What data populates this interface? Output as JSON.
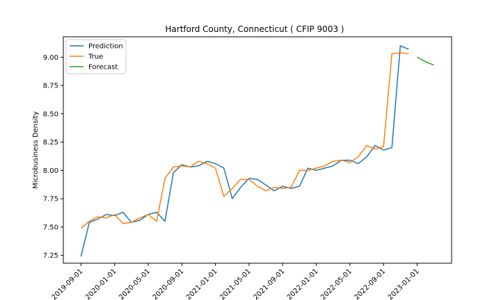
{
  "chart_data": {
    "type": "line",
    "title": "Hartford County, Connecticut ( CFIP 9003 )",
    "xlabel": "",
    "ylabel": "Microbusiness Density",
    "ylim": [
      7.18,
      9.18
    ],
    "y_ticks": [
      7.25,
      7.5,
      7.75,
      8.0,
      8.25,
      8.5,
      8.75,
      9.0
    ],
    "y_tick_labels": [
      "7.25",
      "7.50",
      "7.75",
      "8.00",
      "8.25",
      "8.50",
      "8.75",
      "9.00"
    ],
    "x_ticks": [
      "2019-09-01",
      "2020-01-01",
      "2020-05-01",
      "2020-09-01",
      "2021-01-01",
      "2021-05-01",
      "2021-09-01",
      "2022-01-01",
      "2022-05-01",
      "2022-09-01",
      "2023-01-01"
    ],
    "grid": false,
    "legend_position": "upper left",
    "series": [
      {
        "name": "Prediction",
        "color": "#1f77b4",
        "points": [
          [
            "2019-09-01",
            7.24
          ],
          [
            "2019-10-01",
            7.54
          ],
          [
            "2019-11-01",
            7.57
          ],
          [
            "2019-12-01",
            7.61
          ],
          [
            "2020-01-01",
            7.6
          ],
          [
            "2020-02-01",
            7.63
          ],
          [
            "2020-03-01",
            7.54
          ],
          [
            "2020-04-01",
            7.56
          ],
          [
            "2020-05-01",
            7.61
          ],
          [
            "2020-06-01",
            7.63
          ],
          [
            "2020-07-01",
            7.55
          ],
          [
            "2020-08-01",
            7.98
          ],
          [
            "2020-09-01",
            8.05
          ],
          [
            "2020-10-01",
            8.03
          ],
          [
            "2020-11-01",
            8.04
          ],
          [
            "2020-12-01",
            8.08
          ],
          [
            "2021-01-01",
            8.06
          ],
          [
            "2021-02-01",
            8.02
          ],
          [
            "2021-03-01",
            7.75
          ],
          [
            "2021-04-01",
            7.85
          ],
          [
            "2021-05-01",
            7.93
          ],
          [
            "2021-06-01",
            7.92
          ],
          [
            "2021-07-01",
            7.87
          ],
          [
            "2021-08-01",
            7.82
          ],
          [
            "2021-09-01",
            7.86
          ],
          [
            "2021-10-01",
            7.84
          ],
          [
            "2021-11-01",
            7.86
          ],
          [
            "2021-12-01",
            8.02
          ],
          [
            "2022-01-01",
            8.0
          ],
          [
            "2022-02-01",
            8.02
          ],
          [
            "2022-03-01",
            8.04
          ],
          [
            "2022-04-01",
            8.09
          ],
          [
            "2022-05-01",
            8.09
          ],
          [
            "2022-06-01",
            8.06
          ],
          [
            "2022-07-01",
            8.12
          ],
          [
            "2022-08-01",
            8.22
          ],
          [
            "2022-09-01",
            8.18
          ],
          [
            "2022-10-01",
            8.2
          ],
          [
            "2022-11-01",
            9.1
          ],
          [
            "2022-12-01",
            9.07
          ]
        ]
      },
      {
        "name": "True",
        "color": "#ff7f0e",
        "points": [
          [
            "2019-09-01",
            7.49
          ],
          [
            "2019-10-01",
            7.55
          ],
          [
            "2019-11-01",
            7.59
          ],
          [
            "2019-12-01",
            7.58
          ],
          [
            "2020-01-01",
            7.61
          ],
          [
            "2020-02-01",
            7.53
          ],
          [
            "2020-03-01",
            7.54
          ],
          [
            "2020-04-01",
            7.58
          ],
          [
            "2020-05-01",
            7.61
          ],
          [
            "2020-06-01",
            7.55
          ],
          [
            "2020-07-01",
            7.93
          ],
          [
            "2020-08-01",
            8.03
          ],
          [
            "2020-09-01",
            8.04
          ],
          [
            "2020-10-01",
            8.03
          ],
          [
            "2020-11-01",
            8.08
          ],
          [
            "2020-12-01",
            8.06
          ],
          [
            "2021-01-01",
            8.02
          ],
          [
            "2021-02-01",
            7.77
          ],
          [
            "2021-03-01",
            7.84
          ],
          [
            "2021-04-01",
            7.92
          ],
          [
            "2021-05-01",
            7.92
          ],
          [
            "2021-06-01",
            7.86
          ],
          [
            "2021-07-01",
            7.82
          ],
          [
            "2021-08-01",
            7.85
          ],
          [
            "2021-09-01",
            7.84
          ],
          [
            "2021-10-01",
            7.85
          ],
          [
            "2021-11-01",
            8.0
          ],
          [
            "2021-12-01",
            8.0
          ],
          [
            "2022-01-01",
            8.02
          ],
          [
            "2022-02-01",
            8.04
          ],
          [
            "2022-03-01",
            8.08
          ],
          [
            "2022-04-01",
            8.09
          ],
          [
            "2022-05-01",
            8.07
          ],
          [
            "2022-06-01",
            8.12
          ],
          [
            "2022-07-01",
            8.22
          ],
          [
            "2022-08-01",
            8.19
          ],
          [
            "2022-09-01",
            8.21
          ],
          [
            "2022-10-01",
            9.03
          ],
          [
            "2022-11-01",
            9.04
          ],
          [
            "2022-12-01",
            9.03
          ]
        ]
      },
      {
        "name": "Forecast",
        "color": "#2ca02c",
        "points": [
          [
            "2023-01-01",
            9.0
          ],
          [
            "2023-02-01",
            8.96
          ],
          [
            "2023-03-01",
            8.93
          ]
        ]
      }
    ]
  }
}
